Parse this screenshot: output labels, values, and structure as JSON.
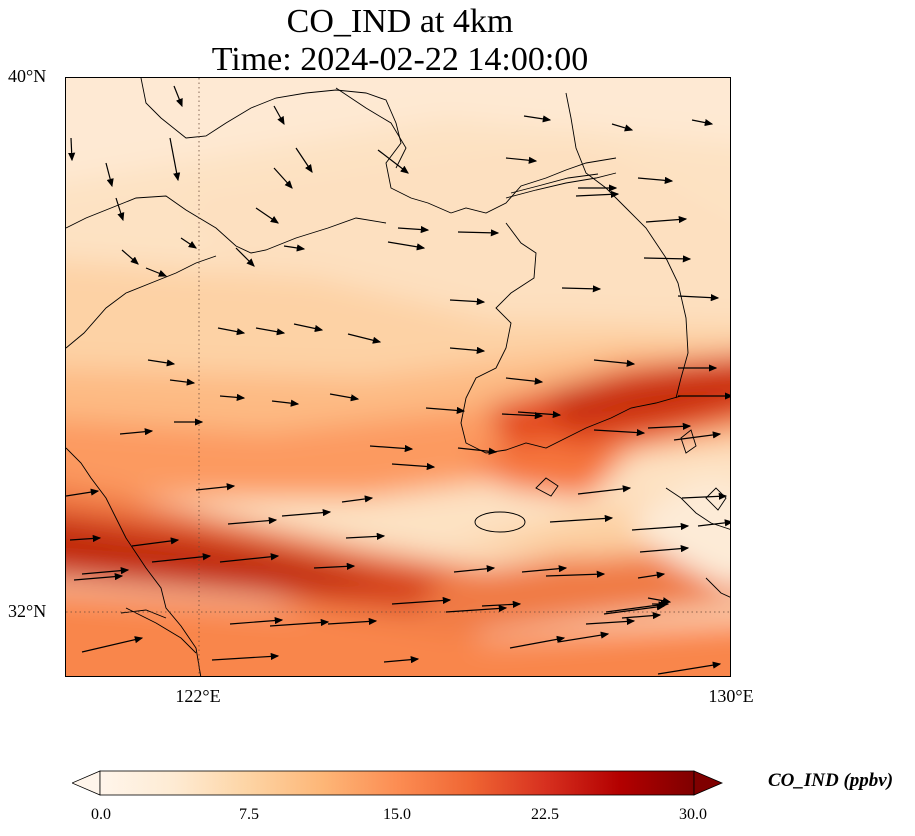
{
  "title": {
    "line1": "CO_IND at 4km",
    "line2": "Time: 2024-02-22 14:00:00"
  },
  "axes": {
    "lat_labels": [
      "40°N",
      "32°N"
    ],
    "lon_labels": [
      "122°E",
      "130°E"
    ]
  },
  "colorbar": {
    "label": "CO_IND (ppbv)",
    "ticks": [
      "0.0",
      "7.5",
      "15.0",
      "22.5",
      "30.0"
    ],
    "min": 0,
    "max": 30,
    "extend": "both",
    "colormap": [
      "#fff5eb",
      "#fee6ce",
      "#fdd0a2",
      "#fdae6b",
      "#fd8d3c",
      "#f16913",
      "#d94801",
      "#a63603",
      "#7f2704"
    ]
  },
  "map": {
    "lon_range": [
      120,
      130
    ],
    "lat_range": [
      31,
      40
    ],
    "gridlines": {
      "lons": [
        122
      ],
      "lats": [
        32
      ],
      "style": "dotted"
    },
    "wind_vectors": true,
    "coastlines": true
  }
}
